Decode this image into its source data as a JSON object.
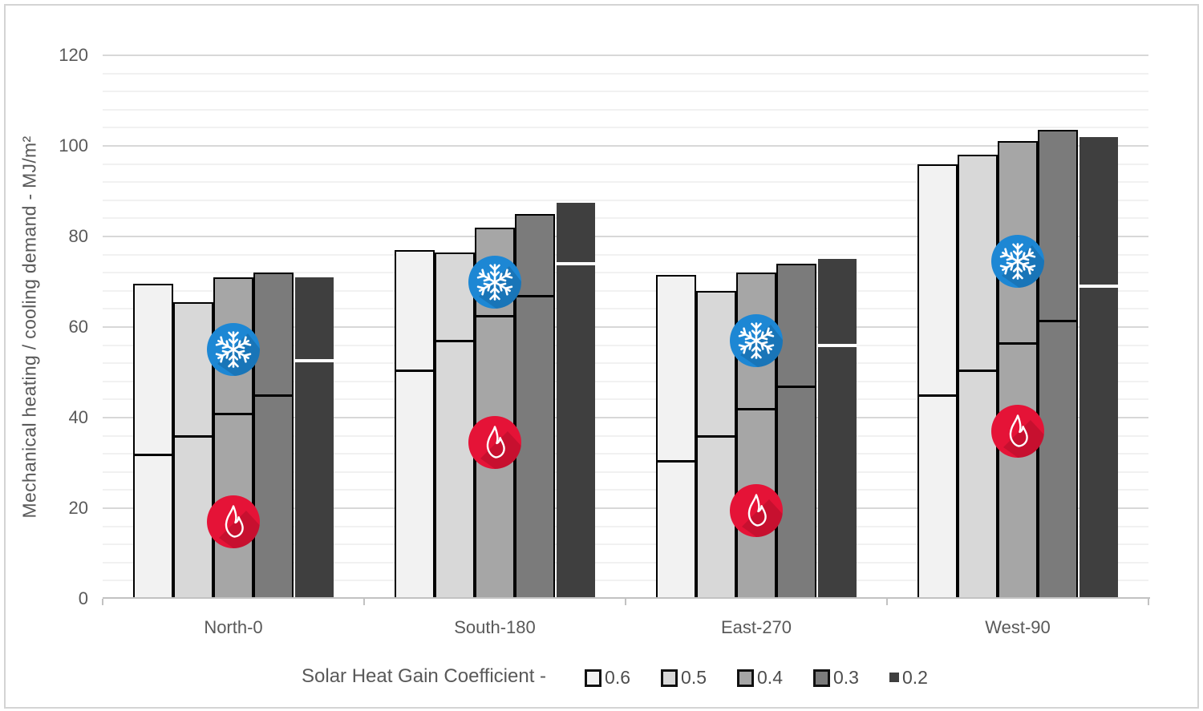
{
  "chart_data": {
    "type": "bar",
    "stacked": true,
    "title": "",
    "ylabel": "Mechanical heating / cooling demand - MJ/m²",
    "xlabel": "",
    "legend_title": "Solar Heat Gain Coefficient -",
    "legend_position": "bottom",
    "categories": [
      "North-0",
      "South-180",
      "East-270",
      "West-90"
    ],
    "ylim": [
      0,
      120
    ],
    "yticks": [
      0,
      20,
      40,
      60,
      80,
      100,
      120
    ],
    "minor_grid_step": 4,
    "grid": true,
    "series": [
      {
        "name": "0.6",
        "color": "#f2f2f2",
        "border": "#000000",
        "heating": [
          31.5,
          50,
          30,
          44.5
        ],
        "cooling": [
          38,
          27,
          41.5,
          51.5
        ],
        "totals": [
          69.5,
          77,
          71.5,
          96
        ]
      },
      {
        "name": "0.5",
        "color": "#d8d8d8",
        "border": "#000000",
        "heating": [
          35.5,
          56.5,
          35.5,
          50
        ],
        "cooling": [
          30,
          20,
          32.5,
          48
        ],
        "totals": [
          65.5,
          76.5,
          68,
          98
        ]
      },
      {
        "name": "0.4",
        "color": "#a6a6a6",
        "border": "#000000",
        "heating": [
          40.5,
          62,
          41.5,
          56
        ],
        "cooling": [
          30.5,
          20,
          30.5,
          45
        ],
        "totals": [
          71,
          82,
          72,
          101
        ]
      },
      {
        "name": "0.3",
        "color": "#7b7b7b",
        "border": "#000000",
        "heating": [
          44.5,
          66.5,
          46.5,
          61
        ],
        "cooling": [
          27.5,
          18.5,
          27.5,
          42.5
        ],
        "totals": [
          72,
          85,
          74,
          103.5
        ]
      },
      {
        "name": "0.2",
        "color": "#3f3f3f",
        "border": "none",
        "heating": [
          52.5,
          74,
          56,
          69
        ],
        "cooling": [
          18.5,
          13.5,
          19,
          33
        ],
        "totals": [
          71,
          87.5,
          75,
          102
        ]
      }
    ],
    "divider_meaning": "boundary between heating (bottom segment) and cooling (top segment)",
    "icon_colors": {
      "snowflake_circle": "#1d87d4",
      "flame_circle": "#e51337",
      "glyph": "#ffffff"
    },
    "icon_positions": [
      {
        "category": "North-0",
        "snowflake_value": 55,
        "flame_value": 17
      },
      {
        "category": "South-180",
        "snowflake_value": 70,
        "flame_value": 34.5
      },
      {
        "category": "East-270",
        "snowflake_value": 57,
        "flame_value": 19.5
      },
      {
        "category": "West-90",
        "snowflake_value": 74.5,
        "flame_value": 37
      }
    ]
  }
}
